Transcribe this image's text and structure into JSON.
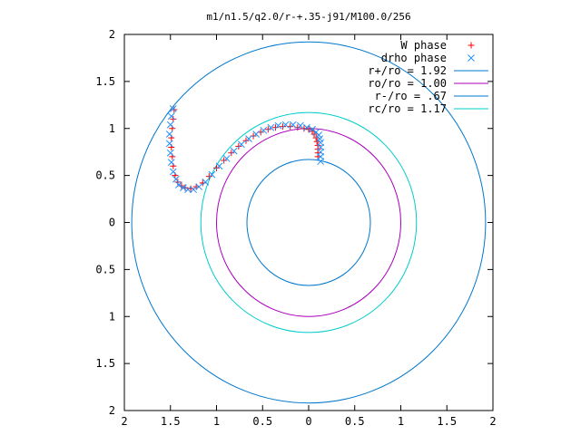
{
  "chart_data": {
    "type": "scatter",
    "title": "m1/n1.5/q2.0/r-+.35-j91/M100.0/256",
    "xlim": [
      -2,
      2
    ],
    "ylim": [
      -2,
      2
    ],
    "x_tick_values": [
      -2,
      -1.5,
      -1,
      -0.5,
      0,
      0.5,
      1,
      1.5,
      2
    ],
    "x_tick_labels": [
      "2",
      "1.5",
      "1",
      "0.5",
      "0",
      "0.5",
      "1",
      "1.5",
      "2"
    ],
    "y_tick_values": [
      2,
      1.5,
      1,
      0.5,
      0,
      -0.5,
      -1,
      -1.5,
      -2
    ],
    "y_tick_labels": [
      "2",
      "1.5",
      "1",
      "0.5",
      "0",
      "0.5",
      "1",
      "1.5",
      "2"
    ],
    "grid": false,
    "legend_position": "top-right",
    "legend": [
      {
        "label": "W phase",
        "symbol": "plus",
        "color": "#ff0000"
      },
      {
        "label": "drho phase",
        "symbol": "cross",
        "color": "#1e90ff"
      },
      {
        "label": "r+/ro = 1.92",
        "symbol": "line",
        "color": "#0077cc"
      },
      {
        "label": "ro/ro = 1.00",
        "symbol": "line",
        "color": "#aa00bb"
      },
      {
        "label": "r-/ro = .67",
        "symbol": "line",
        "color": "#0077cc"
      },
      {
        "label": "rc/ro = 1.17",
        "symbol": "line",
        "color": "#00cccc"
      }
    ],
    "circles": [
      {
        "name": "r+/ro",
        "radius": 1.92,
        "color": "#0077cc"
      },
      {
        "name": "ro/ro",
        "radius": 1.0,
        "color": "#aa00bb"
      },
      {
        "name": "r-/ro",
        "radius": 0.67,
        "color": "#0077cc"
      },
      {
        "name": "rc/ro",
        "radius": 1.17,
        "color": "#00cccc"
      }
    ],
    "series": [
      {
        "name": "W phase",
        "marker": "plus",
        "color": "#ff0000",
        "points": [
          [
            0.1,
            0.7
          ],
          [
            0.1,
            0.74
          ],
          [
            0.1,
            0.78
          ],
          [
            0.1,
            0.82
          ],
          [
            0.09,
            0.86
          ],
          [
            0.08,
            0.9
          ],
          [
            0.06,
            0.94
          ],
          [
            0.04,
            0.97
          ],
          [
            0.0,
            0.99
          ],
          [
            -0.05,
            1.0
          ],
          [
            -0.12,
            1.01
          ],
          [
            -0.2,
            1.02
          ],
          [
            -0.28,
            1.02
          ],
          [
            -0.36,
            1.01
          ],
          [
            -0.44,
            0.99
          ],
          [
            -0.52,
            0.96
          ],
          [
            -0.6,
            0.92
          ],
          [
            -0.68,
            0.87
          ],
          [
            -0.76,
            0.81
          ],
          [
            -0.84,
            0.74
          ],
          [
            -0.92,
            0.66
          ],
          [
            -1.0,
            0.58
          ],
          [
            -1.08,
            0.49
          ],
          [
            -1.15,
            0.42
          ],
          [
            -1.22,
            0.38
          ],
          [
            -1.28,
            0.36
          ],
          [
            -1.34,
            0.37
          ],
          [
            -1.38,
            0.39
          ],
          [
            -1.42,
            0.43
          ],
          [
            -1.45,
            0.5
          ],
          [
            -1.47,
            0.6
          ],
          [
            -1.48,
            0.7
          ],
          [
            -1.49,
            0.8
          ],
          [
            -1.49,
            0.9
          ],
          [
            -1.48,
            1.0
          ],
          [
            -1.47,
            1.1
          ],
          [
            -1.46,
            1.2
          ]
        ]
      },
      {
        "name": "drho phase",
        "marker": "cross",
        "color": "#1e90ff",
        "points": [
          [
            0.13,
            0.65
          ],
          [
            0.13,
            0.7
          ],
          [
            0.13,
            0.75
          ],
          [
            0.13,
            0.8
          ],
          [
            0.13,
            0.85
          ],
          [
            0.12,
            0.89
          ],
          [
            0.11,
            0.93
          ],
          [
            0.08,
            0.96
          ],
          [
            0.04,
            0.99
          ],
          [
            -0.02,
            1.01
          ],
          [
            -0.09,
            1.03
          ],
          [
            -0.17,
            1.04
          ],
          [
            -0.25,
            1.04
          ],
          [
            -0.33,
            1.03
          ],
          [
            -0.41,
            1.01
          ],
          [
            -0.49,
            0.98
          ],
          [
            -0.57,
            0.94
          ],
          [
            -0.65,
            0.89
          ],
          [
            -0.73,
            0.83
          ],
          [
            -0.81,
            0.76
          ],
          [
            -0.89,
            0.68
          ],
          [
            -0.97,
            0.6
          ],
          [
            -1.05,
            0.51
          ],
          [
            -1.12,
            0.43
          ],
          [
            -1.19,
            0.38
          ],
          [
            -1.25,
            0.35
          ],
          [
            -1.31,
            0.35
          ],
          [
            -1.36,
            0.37
          ],
          [
            -1.41,
            0.4
          ],
          [
            -1.44,
            0.46
          ],
          [
            -1.47,
            0.54
          ],
          [
            -1.49,
            0.64
          ],
          [
            -1.5,
            0.74
          ],
          [
            -1.51,
            0.84
          ],
          [
            -1.51,
            0.94
          ],
          [
            -1.5,
            1.04
          ],
          [
            -1.49,
            1.13
          ],
          [
            -1.47,
            1.21
          ]
        ]
      }
    ]
  }
}
